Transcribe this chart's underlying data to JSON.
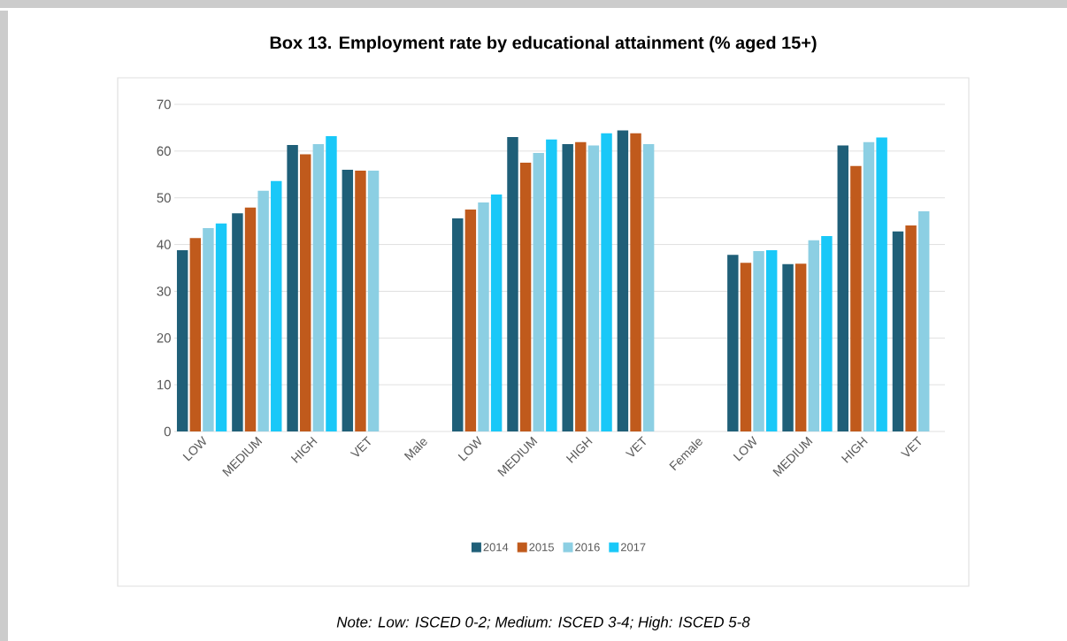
{
  "chart_data": {
    "type": "bar",
    "title": "Box 13. Employment rate by educational attainment (% aged 15+)",
    "categories": [
      "LOW",
      "MEDIUM",
      "HIGH",
      "VET",
      "Male",
      "LOW",
      "MEDIUM",
      "HIGH",
      "VET",
      "Female",
      "LOW",
      "MEDIUM",
      "HIGH",
      "VET"
    ],
    "series": [
      {
        "name": "2014",
        "color": "#1f5f78",
        "values": [
          38.8,
          46.7,
          61.3,
          56.0,
          null,
          45.6,
          63.0,
          61.5,
          64.4,
          null,
          37.8,
          35.8,
          61.2,
          42.8
        ]
      },
      {
        "name": "2015",
        "color": "#c05a1c",
        "values": [
          41.4,
          47.9,
          59.3,
          55.8,
          null,
          47.5,
          57.5,
          61.9,
          63.8,
          null,
          36.1,
          35.9,
          56.8,
          44.1
        ]
      },
      {
        "name": "2016",
        "color": "#8ccfe3",
        "values": [
          43.5,
          51.5,
          61.5,
          55.8,
          null,
          49.0,
          59.6,
          61.2,
          61.5,
          null,
          38.6,
          40.9,
          61.9,
          47.1
        ]
      },
      {
        "name": "2017",
        "color": "#19c8f8",
        "values": [
          44.5,
          53.6,
          63.2,
          null,
          null,
          50.7,
          62.5,
          63.8,
          null,
          null,
          38.8,
          41.8,
          62.9,
          null
        ]
      }
    ],
    "ylim": [
      0,
      70
    ],
    "yticks": [
      0,
      10,
      20,
      30,
      40,
      50,
      60,
      70
    ],
    "grid": "y",
    "legend": "bottom",
    "annotations": [
      "Note: Low: ISCED 0-2; Medium: ISCED 3-4; High: ISCED 5-8"
    ]
  }
}
